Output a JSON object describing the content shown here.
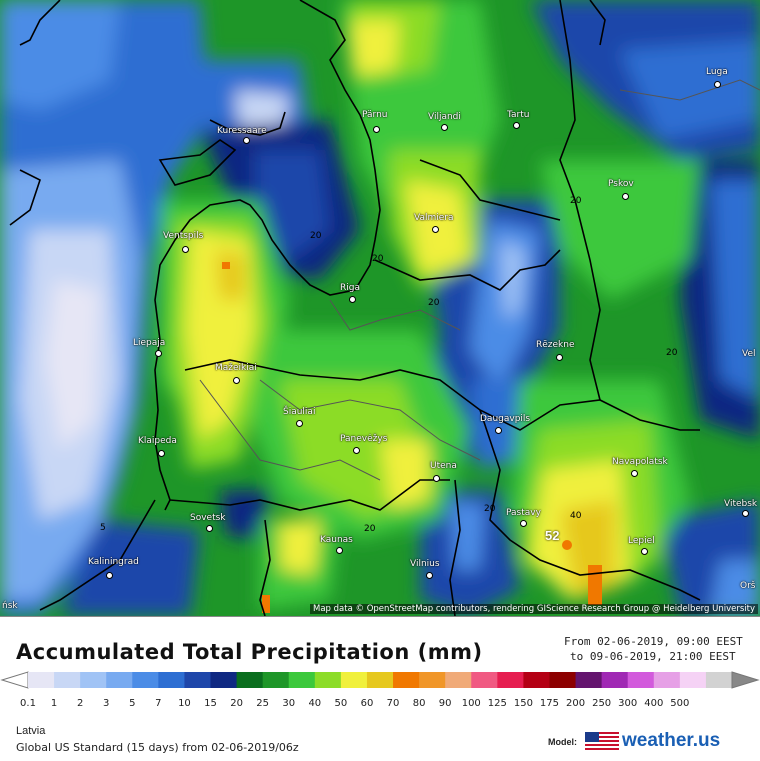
{
  "map": {
    "attribution": "Map data © OpenStreetMap contributors, rendering GIScience Research Group @ Heidelberg University",
    "cities": [
      {
        "name": "Kuressaare"
      },
      {
        "name": "Pärnu"
      },
      {
        "name": "Viljandi"
      },
      {
        "name": "Tartu"
      },
      {
        "name": "Luga"
      },
      {
        "name": "Pskov"
      },
      {
        "name": "Ventspils"
      },
      {
        "name": "Valmiera"
      },
      {
        "name": "Riga"
      },
      {
        "name": "Liepaja"
      },
      {
        "name": "Mažeikiai"
      },
      {
        "name": "Rēzekne"
      },
      {
        "name": "Šiauliai"
      },
      {
        "name": "Klaipeda"
      },
      {
        "name": "Panevėžys"
      },
      {
        "name": "Daugavpils"
      },
      {
        "name": "Navapolatsk"
      },
      {
        "name": "Utena"
      },
      {
        "name": "Sovetsk"
      },
      {
        "name": "Pastavy"
      },
      {
        "name": "Vitebsk"
      },
      {
        "name": "Kaunas"
      },
      {
        "name": "Lepiel"
      },
      {
        "name": "Kaliningrad"
      },
      {
        "name": "Vilnius"
      },
      {
        "name": "Orš"
      },
      {
        "name": "Vel"
      },
      {
        "name": "ńsk"
      }
    ],
    "contour_labels": [
      "20",
      "20",
      "20",
      "20",
      "20",
      "20",
      "20",
      "5",
      "40"
    ],
    "peak_value": "52"
  },
  "legend": {
    "title": "Accumulated Total Precipitation (mm)",
    "from_text": "From 02-06-2019, 09:00 EEST",
    "to_text": "to 09-06-2019, 21:00 EEST",
    "ticks": [
      "0.1",
      "1",
      "2",
      "3",
      "5",
      "7",
      "10",
      "15",
      "20",
      "25",
      "30",
      "40",
      "50",
      "60",
      "70",
      "80",
      "90",
      "100",
      "125",
      "150",
      "175",
      "200",
      "250",
      "300",
      "400",
      "500"
    ],
    "colors": [
      "#e6e6f5",
      "#c8d7f5",
      "#a0c3f5",
      "#78aaf0",
      "#4b8ce6",
      "#2d6ed2",
      "#1e46aa",
      "#0f2882",
      "#0a6e1e",
      "#1e9628",
      "#3cc83c",
      "#8cdc28",
      "#f0f03c",
      "#e6c81e",
      "#f07800",
      "#f09628",
      "#f0aa78",
      "#f05a82",
      "#e61e50",
      "#b40014",
      "#8c0000",
      "#64146e",
      "#a028b4",
      "#d25adc",
      "#e6a0e6",
      "#f5d2f5",
      "#d2d2d2"
    ],
    "region": "Latvia",
    "model_text": "Global US Standard (15 days) from 02-06-2019/06z",
    "model_label": "Model:",
    "brand": "weather.us"
  }
}
